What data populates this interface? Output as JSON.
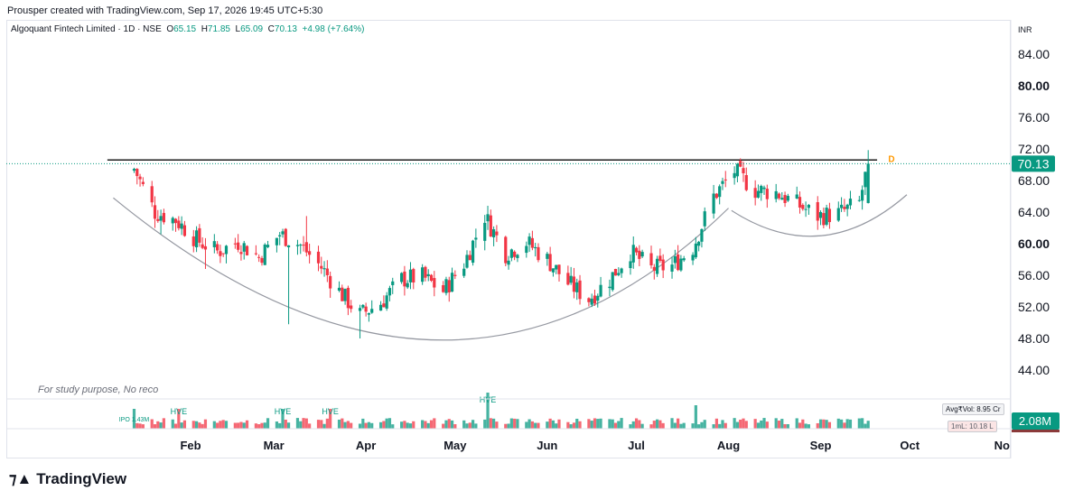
{
  "header": {
    "creator_line": "Prousper created with TradingView.com, Sep 17, 2026 19:45 UTC+5:30"
  },
  "legend": {
    "symbol": "Algoquant Fintech Limited · 1D · NSE",
    "o_label": "O",
    "o_value": "65.15",
    "h_label": "H",
    "h_value": "71.85",
    "l_label": "L",
    "l_value": "65.09",
    "c_label": "C",
    "c_value": "70.13",
    "change": "+4.98 (+7.64%)"
  },
  "note": "For study purpose, No reco",
  "brand": {
    "name": "TradingView",
    "icon": "tradingview-logo-icon"
  },
  "volume_stats": {
    "avg_vol": "Avg₹Vol: 8.95 Cr",
    "ml": "1mL: 10.18 L",
    "current_volume": "2.08M"
  },
  "colors": {
    "up": "#089981",
    "down": "#f23645",
    "resistance_line": "#1e1e1e",
    "arc": "#9598a1",
    "price_badge": "#089981",
    "volume_badge": "#089981"
  },
  "chart_data": {
    "type": "candlestick",
    "currency_label": "INR",
    "last_price_label": "70.13",
    "y_ticks": [
      "84.00",
      "80.00",
      "76.00",
      "72.00",
      "68.00",
      "64.00",
      "60.00",
      "56.00",
      "52.00",
      "48.00",
      "44.00"
    ],
    "y_bold_ticks": [
      "80.00",
      "60.00"
    ],
    "ylim": [
      41.5,
      87.0
    ],
    "x_ticks": [
      {
        "label": "Feb",
        "date": "2026-02-01"
      },
      {
        "label": "Mar",
        "date": "2026-03-01"
      },
      {
        "label": "Apr",
        "date": "2026-04-01"
      },
      {
        "label": "May",
        "date": "2026-05-01"
      },
      {
        "label": "Jun",
        "date": "2026-06-01"
      },
      {
        "label": "Jul",
        "date": "2026-07-01"
      },
      {
        "label": "Aug",
        "date": "2026-08-01"
      },
      {
        "label": "Sep",
        "date": "2026-09-01"
      },
      {
        "label": "Oct",
        "date": "2026-10-01"
      },
      {
        "label": "No",
        "date": "2026-11-01"
      }
    ],
    "resistance_level": 70.6,
    "resistance_range": [
      "2026-01-04",
      "2026-09-20"
    ],
    "resistance_marker": "D",
    "arcs": [
      {
        "from": {
          "date": "2026-01-06",
          "price": 65.8
        },
        "bottom": {
          "date": "2026-04-25",
          "price": 47.8
        },
        "to": {
          "date": "2026-08-01",
          "price": 64.5
        }
      },
      {
        "from": {
          "date": "2026-08-02",
          "price": 64.2
        },
        "bottom": {
          "date": "2026-09-01",
          "price": 61.0
        },
        "to": {
          "date": "2026-09-30",
          "price": 66.2
        }
      }
    ],
    "volume_labels": [
      {
        "text": "IPO 1.43M",
        "date": "2026-01-13"
      },
      {
        "text": "HVE",
        "date": "2026-01-28"
      },
      {
        "text": "HVE",
        "date": "2026-03-04"
      },
      {
        "text": "HVE",
        "date": "2026-03-20"
      },
      {
        "text": "HVE",
        "date": "2026-05-12"
      }
    ],
    "anchors": [
      [
        "2026-01-13",
        69.5
      ],
      [
        "2026-01-20",
        64.0
      ],
      [
        "2026-01-27",
        63.0
      ],
      [
        "2026-02-03",
        60.5
      ],
      [
        "2026-02-10",
        59.0
      ],
      [
        "2026-02-17",
        60.2
      ],
      [
        "2026-02-24",
        58.3
      ],
      [
        "2026-03-03",
        61.2
      ],
      [
        "2026-03-10",
        59.8
      ],
      [
        "2026-03-17",
        57.0
      ],
      [
        "2026-03-24",
        53.5
      ],
      [
        "2026-03-30",
        51.0
      ],
      [
        "2026-04-06",
        52.5
      ],
      [
        "2026-04-13",
        55.5
      ],
      [
        "2026-04-20",
        55.8
      ],
      [
        "2026-04-27",
        54.0
      ],
      [
        "2026-05-04",
        57.5
      ],
      [
        "2026-05-11",
        63.5
      ],
      [
        "2026-05-18",
        58.8
      ],
      [
        "2026-05-25",
        60.2
      ],
      [
        "2026-06-01",
        58.0
      ],
      [
        "2026-06-08",
        55.0
      ],
      [
        "2026-06-15",
        53.0
      ],
      [
        "2026-06-22",
        55.5
      ],
      [
        "2026-06-29",
        59.0
      ],
      [
        "2026-07-06",
        56.8
      ],
      [
        "2026-07-13",
        57.2
      ],
      [
        "2026-07-20",
        59.5
      ],
      [
        "2026-07-27",
        66.0
      ],
      [
        "2026-08-03",
        69.2
      ],
      [
        "2026-08-10",
        66.8
      ],
      [
        "2026-08-17",
        66.5
      ],
      [
        "2026-08-24",
        65.0
      ],
      [
        "2026-08-31",
        63.5
      ],
      [
        "2026-09-07",
        63.8
      ],
      [
        "2026-09-14",
        65.2
      ],
      [
        "2026-09-17",
        70.13
      ]
    ]
  }
}
